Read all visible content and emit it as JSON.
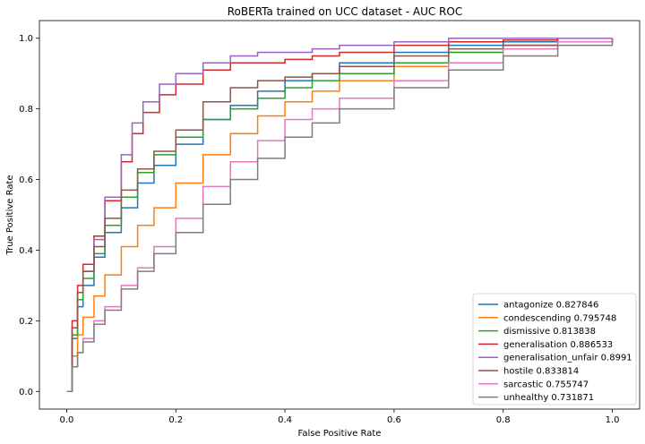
{
  "chart_data": {
    "type": "line",
    "title": "RoBERTa trained on UCC dataset - AUC ROC",
    "xlabel": "False Positive Rate",
    "ylabel": "True Positive Rate",
    "xlim": [
      -0.05,
      1.05
    ],
    "ylim": [
      -0.05,
      1.05
    ],
    "xticks": [
      "0.0",
      "0.2",
      "0.4",
      "0.6",
      "0.8",
      "1.0"
    ],
    "yticks": [
      "0.0",
      "0.2",
      "0.4",
      "0.6",
      "0.8",
      "1.0"
    ],
    "grid": false,
    "legend_position": "lower right",
    "series": [
      {
        "name": "antagonize 0.827846",
        "color": "#1f77b4",
        "x": [
          0,
          0.01,
          0.02,
          0.03,
          0.05,
          0.07,
          0.1,
          0.13,
          0.16,
          0.2,
          0.25,
          0.3,
          0.35,
          0.4,
          0.45,
          0.5,
          0.6,
          0.7,
          0.8,
          0.9,
          1.0
        ],
        "y": [
          0,
          0.15,
          0.24,
          0.3,
          0.38,
          0.45,
          0.52,
          0.59,
          0.64,
          0.7,
          0.77,
          0.81,
          0.85,
          0.88,
          0.9,
          0.93,
          0.96,
          0.98,
          0.99,
          1.0,
          1.0
        ]
      },
      {
        "name": "condescending 0.795748",
        "color": "#ff7f0e",
        "x": [
          0,
          0.01,
          0.02,
          0.03,
          0.05,
          0.07,
          0.1,
          0.13,
          0.16,
          0.2,
          0.25,
          0.3,
          0.35,
          0.4,
          0.45,
          0.5,
          0.6,
          0.7,
          0.8,
          0.9,
          1.0
        ],
        "y": [
          0,
          0.1,
          0.16,
          0.21,
          0.27,
          0.33,
          0.41,
          0.47,
          0.52,
          0.59,
          0.67,
          0.73,
          0.78,
          0.82,
          0.85,
          0.88,
          0.92,
          0.96,
          0.98,
          0.99,
          1.0
        ]
      },
      {
        "name": "dismissive 0.813838",
        "color": "#2ca02c",
        "x": [
          0,
          0.01,
          0.02,
          0.03,
          0.05,
          0.07,
          0.1,
          0.13,
          0.16,
          0.2,
          0.25,
          0.3,
          0.35,
          0.4,
          0.45,
          0.5,
          0.6,
          0.7,
          0.8,
          0.9,
          1.0
        ],
        "y": [
          0,
          0.16,
          0.26,
          0.32,
          0.39,
          0.47,
          0.55,
          0.62,
          0.67,
          0.72,
          0.77,
          0.8,
          0.83,
          0.86,
          0.88,
          0.9,
          0.93,
          0.96,
          0.98,
          0.99,
          1.0
        ]
      },
      {
        "name": "generalisation 0.886533",
        "color": "#d62728",
        "x": [
          0,
          0.01,
          0.02,
          0.03,
          0.05,
          0.07,
          0.1,
          0.12,
          0.14,
          0.17,
          0.2,
          0.25,
          0.3,
          0.35,
          0.4,
          0.45,
          0.5,
          0.6,
          0.7,
          0.8,
          0.9,
          1.0
        ],
        "y": [
          0,
          0.2,
          0.3,
          0.36,
          0.44,
          0.54,
          0.65,
          0.73,
          0.79,
          0.84,
          0.87,
          0.91,
          0.93,
          0.93,
          0.94,
          0.95,
          0.96,
          0.98,
          0.99,
          0.995,
          1.0,
          1.0
        ]
      },
      {
        "name": "generalisation_unfair 0.8991",
        "color": "#9467bd",
        "x": [
          0,
          0.01,
          0.02,
          0.03,
          0.05,
          0.07,
          0.1,
          0.12,
          0.14,
          0.17,
          0.2,
          0.25,
          0.3,
          0.35,
          0.4,
          0.45,
          0.5,
          0.6,
          0.7,
          0.8,
          0.9,
          1.0
        ],
        "y": [
          0,
          0.18,
          0.28,
          0.34,
          0.43,
          0.55,
          0.67,
          0.76,
          0.82,
          0.87,
          0.9,
          0.93,
          0.95,
          0.96,
          0.96,
          0.97,
          0.98,
          0.99,
          1.0,
          1.0,
          1.0,
          1.0
        ]
      },
      {
        "name": "hostile 0.833814",
        "color": "#8c564b",
        "x": [
          0,
          0.01,
          0.02,
          0.03,
          0.05,
          0.07,
          0.1,
          0.13,
          0.16,
          0.2,
          0.25,
          0.3,
          0.35,
          0.4,
          0.45,
          0.5,
          0.6,
          0.7,
          0.8,
          0.9,
          1.0
        ],
        "y": [
          0,
          0.18,
          0.28,
          0.34,
          0.41,
          0.49,
          0.57,
          0.63,
          0.68,
          0.74,
          0.82,
          0.86,
          0.88,
          0.89,
          0.9,
          0.92,
          0.95,
          0.97,
          0.98,
          0.99,
          1.0
        ]
      },
      {
        "name": "sarcastic 0.755747",
        "color": "#e377c2",
        "x": [
          0,
          0.01,
          0.02,
          0.03,
          0.05,
          0.07,
          0.1,
          0.13,
          0.16,
          0.2,
          0.25,
          0.3,
          0.35,
          0.4,
          0.45,
          0.5,
          0.6,
          0.7,
          0.8,
          0.9,
          1.0
        ],
        "y": [
          0,
          0.07,
          0.11,
          0.15,
          0.2,
          0.24,
          0.3,
          0.35,
          0.41,
          0.49,
          0.58,
          0.65,
          0.71,
          0.77,
          0.8,
          0.83,
          0.88,
          0.93,
          0.97,
          0.99,
          1.0
        ]
      },
      {
        "name": "unhealthy 0.731871",
        "color": "#7f7f7f",
        "x": [
          0,
          0.01,
          0.02,
          0.03,
          0.05,
          0.07,
          0.1,
          0.13,
          0.16,
          0.2,
          0.25,
          0.3,
          0.35,
          0.4,
          0.45,
          0.5,
          0.6,
          0.7,
          0.8,
          0.9,
          1.0
        ],
        "y": [
          0,
          0.07,
          0.11,
          0.14,
          0.19,
          0.23,
          0.29,
          0.34,
          0.39,
          0.45,
          0.53,
          0.6,
          0.66,
          0.72,
          0.76,
          0.8,
          0.86,
          0.91,
          0.95,
          0.98,
          1.0
        ]
      }
    ]
  }
}
